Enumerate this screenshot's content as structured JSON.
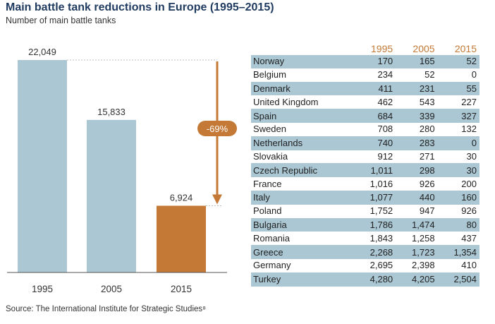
{
  "title": "Main battle tank reductions in Europe (1995–2015)",
  "subtitle": "Number of main battle tanks",
  "source": "Source: The International Institute for Strategic Studies⁸",
  "colors": {
    "bar_blue": "#aac7d3",
    "bar_orange": "#c47a36",
    "title_blue": "#1f3a5f"
  },
  "chart_data": [
    {
      "type": "bar",
      "categories": [
        "1995",
        "2005",
        "2015"
      ],
      "values": [
        22049,
        15833,
        6924
      ],
      "value_labels": [
        "22,049",
        "15,833",
        "6,924"
      ],
      "annotation": "-69%",
      "ylim": [
        0,
        22049
      ],
      "grid": false,
      "legend": "none"
    },
    {
      "type": "table",
      "columns": [
        "",
        "1995",
        "2005",
        "2015"
      ],
      "rows": [
        [
          "Norway",
          "170",
          "165",
          "52"
        ],
        [
          "Belgium",
          "234",
          "52",
          "0"
        ],
        [
          "Denmark",
          "411",
          "231",
          "55"
        ],
        [
          "United Kingdom",
          "462",
          "543",
          "227"
        ],
        [
          "Spain",
          "684",
          "339",
          "327"
        ],
        [
          "Sweden",
          "708",
          "280",
          "132"
        ],
        [
          "Netherlands",
          "740",
          "283",
          "0"
        ],
        [
          "Slovakia",
          "912",
          "271",
          "30"
        ],
        [
          "Czech Republic",
          "1,011",
          "298",
          "30"
        ],
        [
          "France",
          "1,016",
          "926",
          "200"
        ],
        [
          "Italy",
          "1,077",
          "440",
          "160"
        ],
        [
          "Poland",
          "1,752",
          "947",
          "926"
        ],
        [
          "Bulgaria",
          "1,786",
          "1,474",
          "80"
        ],
        [
          "Romania",
          "1,843",
          "1,258",
          "437"
        ],
        [
          "Greece",
          "2,268",
          "1,723",
          "1,354"
        ],
        [
          "Germany",
          "2,695",
          "2,398",
          "410"
        ],
        [
          "Turkey",
          "4,280",
          "4,205",
          "2,504"
        ]
      ]
    }
  ]
}
